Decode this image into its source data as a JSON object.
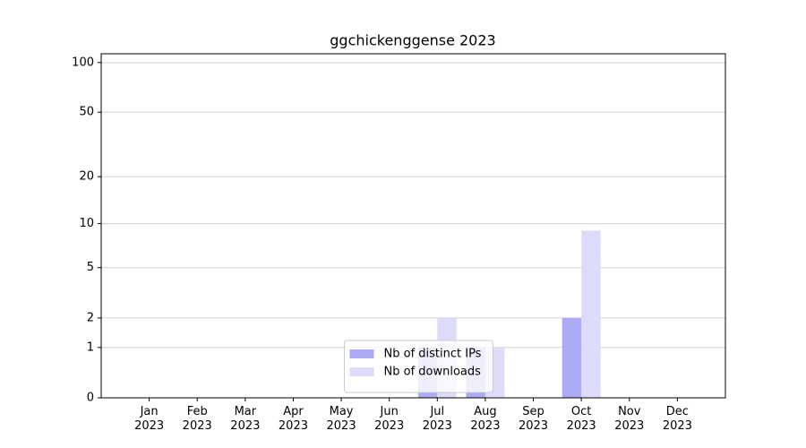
{
  "chart_data": {
    "type": "bar",
    "title": "ggchickenggense 2023",
    "categories": [
      "Jan\n2023",
      "Feb\n2023",
      "Mar\n2023",
      "Apr\n2023",
      "May\n2023",
      "Jun\n2023",
      "Jul\n2023",
      "Aug\n2023",
      "Sep\n2023",
      "Oct\n2023",
      "Nov\n2023",
      "Dec\n2023"
    ],
    "series": [
      {
        "name": "Nb of distinct IPs",
        "color": "#aaaaf5",
        "values": [
          0,
          0,
          0,
          0,
          0,
          0,
          1,
          1,
          0,
          2,
          0,
          0
        ]
      },
      {
        "name": "Nb of downloads",
        "color": "#dcdcfa",
        "values": [
          0,
          0,
          0,
          0,
          0,
          0,
          2,
          1,
          0,
          9,
          0,
          0
        ]
      }
    ],
    "yscale": "log1p",
    "ylim": [
      0,
      113
    ],
    "yticks": [
      0,
      1,
      2,
      5,
      10,
      20,
      50,
      100
    ],
    "grid": true,
    "legend": "lower center"
  }
}
